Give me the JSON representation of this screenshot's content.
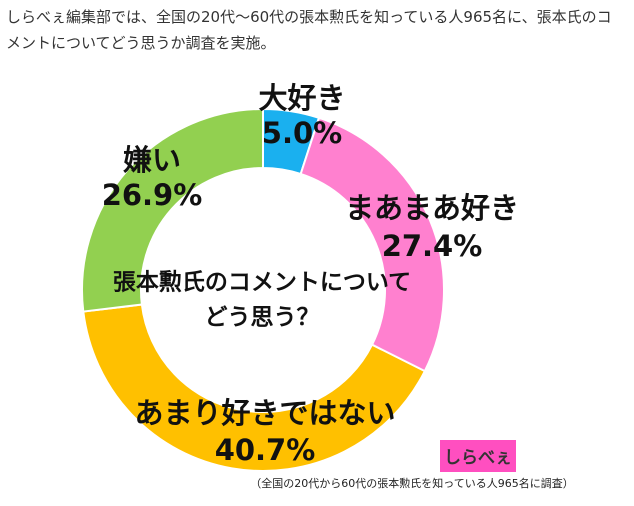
{
  "intro": "しらべぇ編集部では、全国の20代～60代の張本勲氏を知っている人965名に、張本氏のコメントについてどう思うか調査を実施。",
  "chart_data": {
    "type": "donut",
    "title_lines": [
      "張本勲氏のコメントについて",
      "どう思う？"
    ],
    "categories": [
      "大好き",
      "まあまあ好き",
      "あまり好きではない",
      "嫌い"
    ],
    "values": [
      5.0,
      27.4,
      40.7,
      26.9
    ],
    "value_labels": [
      "5.0%",
      "27.4%",
      "40.7%",
      "26.9%"
    ],
    "colors": [
      "#1ab0ef",
      "#ff80cf",
      "#ffc000",
      "#92d050"
    ],
    "note": "（全国の20代から60代の張本勲氏を知っている人965名に調査）",
    "logo": "しらべぇ"
  }
}
